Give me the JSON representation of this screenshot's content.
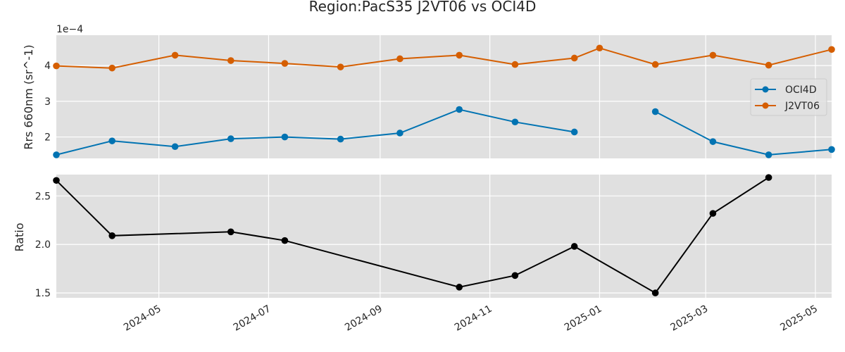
{
  "chart_data": {
    "title": "Region:PacS35 J2VT06 vs OCI4D",
    "x_tick_labels": [
      "2024-05",
      "2024-07",
      "2024-09",
      "2024-11",
      "2025-01",
      "2025-03",
      "2025-05"
    ],
    "x_range": [
      "2024-03-05",
      "2025-05-10"
    ],
    "grid": true,
    "panels": [
      {
        "type": "line",
        "ylabel": "Rrs 660nm (sr^-1)",
        "y_offset_label": "1e−4",
        "y_scale": 0.0001,
        "ylim": [
          0.00014,
          0.000485
        ],
        "y_ticks": [
          0.0002,
          0.0003,
          0.0004
        ],
        "y_tick_labels": [
          "2",
          "3",
          "4"
        ],
        "legend_position": "right",
        "series": [
          {
            "name": "OCI4D",
            "color": "#0173b2",
            "points": [
              {
                "x": "2024-03-05",
                "y": 0.00015
              },
              {
                "x": "2024-04-05",
                "y": 0.000189
              },
              {
                "x": "2024-05-10",
                "y": 0.000173
              },
              {
                "x": "2024-06-10",
                "y": 0.000195
              },
              {
                "x": "2024-07-10",
                "y": 0.0002
              },
              {
                "x": "2024-08-10",
                "y": 0.000194
              },
              {
                "x": "2024-09-12",
                "y": 0.000211
              },
              {
                "x": "2024-10-15",
                "y": 0.000277
              },
              {
                "x": "2024-11-15",
                "y": 0.000242
              },
              {
                "x": "2024-12-18",
                "y": 0.000214
              },
              {
                "x": "2025-02-01",
                "y": 0.000271
              },
              {
                "x": "2025-03-05",
                "y": 0.000187
              },
              {
                "x": "2025-04-05",
                "y": 0.00015
              },
              {
                "x": "2025-05-10",
                "y": 0.000165
              }
            ]
          },
          {
            "name": "J2VT06",
            "color": "#d55e00",
            "points": [
              {
                "x": "2024-03-05",
                "y": 0.000399
              },
              {
                "x": "2024-04-05",
                "y": 0.000393
              },
              {
                "x": "2024-05-10",
                "y": 0.000429
              },
              {
                "x": "2024-06-10",
                "y": 0.000414
              },
              {
                "x": "2024-07-10",
                "y": 0.000406
              },
              {
                "x": "2024-08-10",
                "y": 0.000396
              },
              {
                "x": "2024-09-12",
                "y": 0.000419
              },
              {
                "x": "2024-10-15",
                "y": 0.000429
              },
              {
                "x": "2024-11-15",
                "y": 0.000403
              },
              {
                "x": "2024-12-18",
                "y": 0.000421
              },
              {
                "x": "2025-01-01",
                "y": 0.000449
              },
              {
                "x": "2025-02-01",
                "y": 0.000403
              },
              {
                "x": "2025-03-05",
                "y": 0.000429
              },
              {
                "x": "2025-04-05",
                "y": 0.000401
              },
              {
                "x": "2025-05-10",
                "y": 0.000445
              }
            ]
          }
        ]
      },
      {
        "type": "line",
        "ylabel": "Ratio",
        "ylim": [
          1.45,
          2.72
        ],
        "y_ticks": [
          1.5,
          2.0,
          2.5
        ],
        "y_tick_labels": [
          "1.5",
          "2.0",
          "2.5"
        ],
        "series": [
          {
            "color": "#000000",
            "points": [
              {
                "x": "2024-03-05",
                "y": 2.66
              },
              {
                "x": "2024-04-05",
                "y": 2.09
              },
              {
                "x": "2024-06-10",
                "y": 2.13
              },
              {
                "x": "2024-07-10",
                "y": 2.04
              },
              {
                "x": "2024-10-15",
                "y": 1.56
              },
              {
                "x": "2024-11-15",
                "y": 1.68
              },
              {
                "x": "2024-12-18",
                "y": 1.98
              },
              {
                "x": "2025-02-01",
                "y": 1.5
              },
              {
                "x": "2025-03-05",
                "y": 2.32
              },
              {
                "x": "2025-04-05",
                "y": 2.69
              }
            ]
          }
        ]
      }
    ]
  }
}
